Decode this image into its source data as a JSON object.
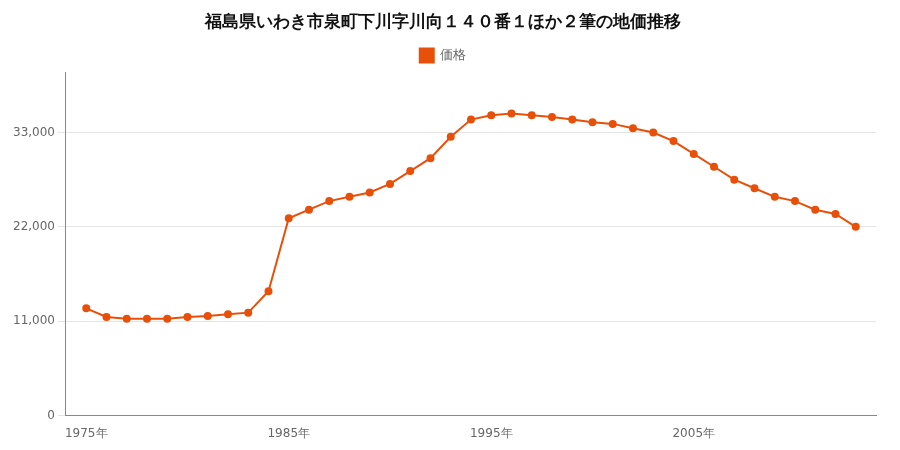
{
  "chart_data": {
    "type": "line",
    "title": "福島県いわき市泉町下川字川向１４０番１ほか２筆の地価推移",
    "x": [
      1975,
      1976,
      1977,
      1978,
      1979,
      1980,
      1981,
      1982,
      1983,
      1984,
      1985,
      1986,
      1987,
      1988,
      1989,
      1990,
      1991,
      1992,
      1993,
      1994,
      1995,
      1996,
      1997,
      1998,
      1999,
      2000,
      2001,
      2002,
      2003,
      2004,
      2005,
      2006,
      2007,
      2008,
      2009,
      2010,
      2011,
      2012,
      2013
    ],
    "series": [
      {
        "name": "価格",
        "color": "#E8500A",
        "marker": "circle",
        "values": [
          12500,
          11500,
          11300,
          11300,
          11300,
          11500,
          11600,
          11800,
          12000,
          14500,
          23000,
          24000,
          25000,
          25500,
          26000,
          27000,
          28500,
          30000,
          32500,
          34500,
          35000,
          35200,
          35000,
          34800,
          34500,
          34200,
          34000,
          33500,
          33000,
          32000,
          30500,
          29000,
          27500,
          26500,
          25500,
          25000,
          24000,
          23500,
          22000
        ]
      }
    ],
    "xlim": [
      1974,
      2014
    ],
    "xticks": [
      {
        "value": 1975,
        "label": "1975年"
      },
      {
        "value": 1985,
        "label": "1985年"
      },
      {
        "value": 1995,
        "label": "1995年"
      },
      {
        "value": 2005,
        "label": "2005年"
      }
    ],
    "ylim": [
      0,
      40000
    ],
    "yticks": [
      0,
      {
        "value": 11000,
        "label": "11,000"
      },
      {
        "value": 22000,
        "label": "22,000"
      },
      {
        "value": 33000,
        "label": "33,000"
      }
    ],
    "grid": "y",
    "legend": "top"
  }
}
